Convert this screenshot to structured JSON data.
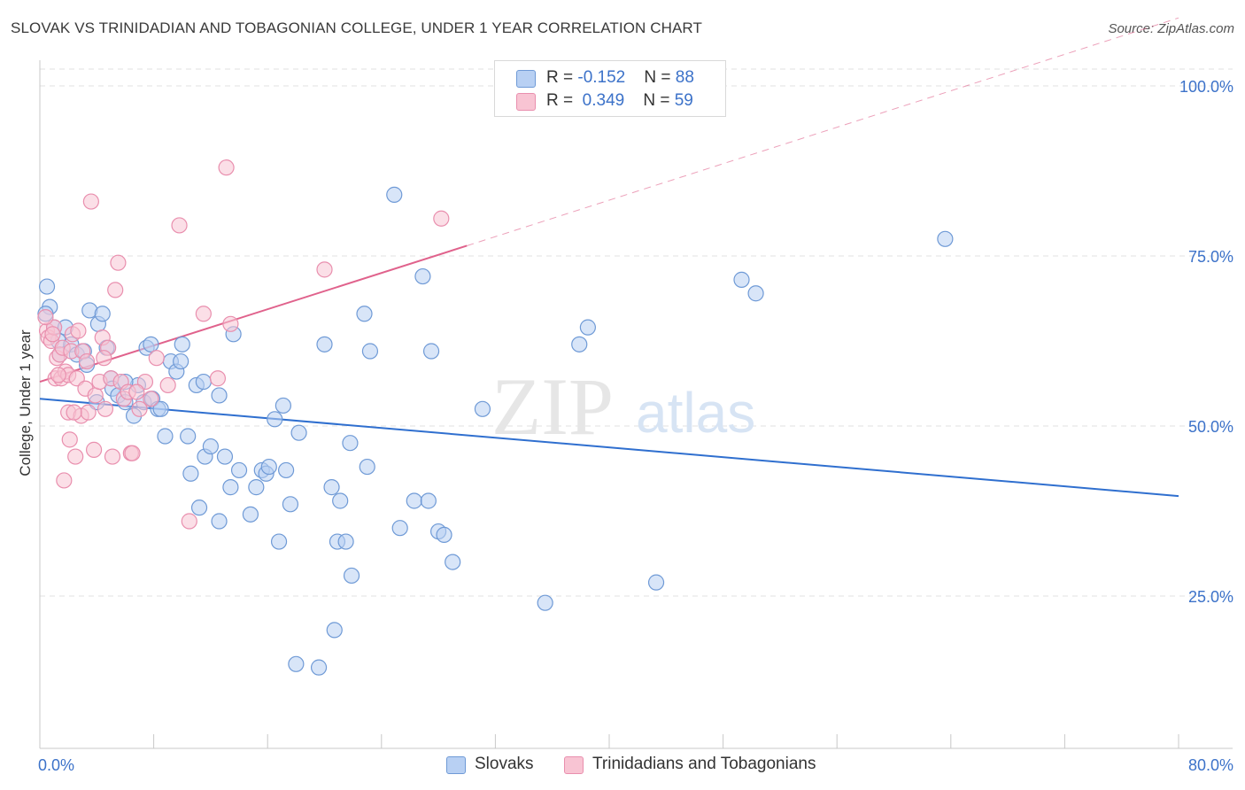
{
  "title": "SLOVAK VS TRINIDADIAN AND TOBAGONIAN COLLEGE, UNDER 1 YEAR CORRELATION CHART",
  "source": "Source: ZipAtlas.com",
  "watermark": {
    "zip": "ZIP",
    "atlas": "atlas"
  },
  "colors": {
    "blue_fill": "#b8d0f3",
    "blue_stroke": "#6f9ad6",
    "blue_line": "#2f6fcf",
    "pink_fill": "#f8c4d3",
    "pink_stroke": "#e98fae",
    "pink_line": "#e0628c",
    "axis_label": "#3c72c9",
    "grid": "#e2e2e2"
  },
  "legend_top": {
    "rows": [
      {
        "r_label": "R = ",
        "r_value": "-0.152",
        "n_label": "N = ",
        "n_value": "88"
      },
      {
        "r_label": "R = ",
        "r_value": " 0.349",
        "n_label": "N = ",
        "n_value": "59"
      }
    ]
  },
  "legend_bottom": {
    "items": [
      "Slovaks",
      "Trinidadians and Tobagonians"
    ]
  },
  "chart_data": {
    "type": "scatter",
    "title": "SLOVAK VS TRINIDADIAN AND TOBAGONIAN COLLEGE, UNDER 1 YEAR CORRELATION CHART",
    "xlabel": "",
    "ylabel": "College, Under 1 year",
    "xlim": [
      0,
      80
    ],
    "ylim": [
      0,
      103
    ],
    "x_tick_labels": [
      "0.0%",
      "80.0%"
    ],
    "y_ticks": [
      25,
      50,
      75,
      100
    ],
    "y_tick_labels": [
      "25.0%",
      "50.0%",
      "75.0%",
      "100.0%"
    ],
    "grid": true,
    "legend_position": "top-center",
    "series": [
      {
        "name": "Slovaks",
        "color": "#6f9ad6",
        "r": -0.152,
        "n": 88,
        "trend": {
          "x": [
            0,
            80
          ],
          "y": [
            54.0,
            39.7
          ]
        },
        "points": [
          [
            0.5,
            70.5
          ],
          [
            0.7,
            67.5
          ],
          [
            0.4,
            66.5
          ],
          [
            1.0,
            64.5
          ],
          [
            1.3,
            62.5
          ],
          [
            1.4,
            60.5
          ],
          [
            1.8,
            64.5
          ],
          [
            2.2,
            62.0
          ],
          [
            2.6,
            60.5
          ],
          [
            3.1,
            61.0
          ],
          [
            3.3,
            59.0
          ],
          [
            3.5,
            67.0
          ],
          [
            4.1,
            65.0
          ],
          [
            4.4,
            66.5
          ],
          [
            4.7,
            61.5
          ],
          [
            5.0,
            57.0
          ],
          [
            5.1,
            55.5
          ],
          [
            5.5,
            54.5
          ],
          [
            6.0,
            53.5
          ],
          [
            6.6,
            51.5
          ],
          [
            6.9,
            56.0
          ],
          [
            7.3,
            53.5
          ],
          [
            7.5,
            61.5
          ],
          [
            7.8,
            62.0
          ],
          [
            7.9,
            54.0
          ],
          [
            8.3,
            52.5
          ],
          [
            8.5,
            52.5
          ],
          [
            8.8,
            48.5
          ],
          [
            9.2,
            59.5
          ],
          [
            9.6,
            58.0
          ],
          [
            9.9,
            59.5
          ],
          [
            10.0,
            62.0
          ],
          [
            10.4,
            48.5
          ],
          [
            10.6,
            43.0
          ],
          [
            11.0,
            56.0
          ],
          [
            11.2,
            38.0
          ],
          [
            11.5,
            56.5
          ],
          [
            11.6,
            45.5
          ],
          [
            12.0,
            47.0
          ],
          [
            12.6,
            36.0
          ],
          [
            12.6,
            54.5
          ],
          [
            13.0,
            45.5
          ],
          [
            13.4,
            41.0
          ],
          [
            13.6,
            63.5
          ],
          [
            14.0,
            43.5
          ],
          [
            14.8,
            37.0
          ],
          [
            15.2,
            41.0
          ],
          [
            15.6,
            43.5
          ],
          [
            15.9,
            43.0
          ],
          [
            16.1,
            44.0
          ],
          [
            16.5,
            51.0
          ],
          [
            16.8,
            33.0
          ],
          [
            17.1,
            53.0
          ],
          [
            17.3,
            43.5
          ],
          [
            17.6,
            38.5
          ],
          [
            18.0,
            15.0
          ],
          [
            18.2,
            49.0
          ],
          [
            19.6,
            14.5
          ],
          [
            20.0,
            62.0
          ],
          [
            20.5,
            41.0
          ],
          [
            20.7,
            20.0
          ],
          [
            20.9,
            33.0
          ],
          [
            21.1,
            39.0
          ],
          [
            21.5,
            33.0
          ],
          [
            21.8,
            47.5
          ],
          [
            21.9,
            28.0
          ],
          [
            22.8,
            66.5
          ],
          [
            23.0,
            44.0
          ],
          [
            23.2,
            61.0
          ],
          [
            24.9,
            84.0
          ],
          [
            25.3,
            35.0
          ],
          [
            26.3,
            39.0
          ],
          [
            26.9,
            72.0
          ],
          [
            27.3,
            39.0
          ],
          [
            27.5,
            61.0
          ],
          [
            28.0,
            34.5
          ],
          [
            28.4,
            34.0
          ],
          [
            29.0,
            30.0
          ],
          [
            31.1,
            52.5
          ],
          [
            35.5,
            24.0
          ],
          [
            37.9,
            62.0
          ],
          [
            38.5,
            64.5
          ],
          [
            43.3,
            27.0
          ],
          [
            49.3,
            71.5
          ],
          [
            50.3,
            69.5
          ],
          [
            63.6,
            77.5
          ],
          [
            6.0,
            56.5
          ],
          [
            4.0,
            53.5
          ]
        ]
      },
      {
        "name": "Trinidadians and Tobagonians",
        "color": "#e98fae",
        "r": 0.349,
        "n": 59,
        "trend": {
          "x": [
            0,
            30
          ],
          "y": [
            56.5,
            76.5
          ],
          "dashed_to": {
            "x": 80,
            "y": 110
          }
        },
        "points": [
          [
            0.5,
            64.0
          ],
          [
            0.6,
            63.0
          ],
          [
            0.8,
            62.5
          ],
          [
            1.0,
            64.5
          ],
          [
            1.1,
            57.0
          ],
          [
            1.2,
            60.0
          ],
          [
            1.4,
            60.5
          ],
          [
            1.5,
            57.0
          ],
          [
            1.6,
            61.5
          ],
          [
            1.8,
            58.0
          ],
          [
            2.0,
            57.5
          ],
          [
            2.0,
            52.0
          ],
          [
            2.1,
            48.0
          ],
          [
            2.2,
            61.0
          ],
          [
            2.3,
            63.5
          ],
          [
            2.5,
            45.5
          ],
          [
            2.6,
            57.0
          ],
          [
            2.7,
            64.0
          ],
          [
            2.9,
            51.5
          ],
          [
            3.0,
            61.0
          ],
          [
            3.2,
            55.5
          ],
          [
            3.4,
            52.0
          ],
          [
            3.6,
            83.0
          ],
          [
            3.8,
            46.5
          ],
          [
            3.9,
            54.5
          ],
          [
            4.2,
            56.5
          ],
          [
            4.4,
            63.0
          ],
          [
            4.6,
            52.5
          ],
          [
            4.8,
            61.5
          ],
          [
            5.0,
            57.0
          ],
          [
            5.1,
            45.5
          ],
          [
            5.3,
            70.0
          ],
          [
            5.5,
            74.0
          ],
          [
            5.7,
            56.5
          ],
          [
            5.9,
            54.0
          ],
          [
            6.2,
            55.0
          ],
          [
            6.4,
            46.0
          ],
          [
            6.5,
            46.0
          ],
          [
            7.0,
            52.5
          ],
          [
            7.4,
            56.5
          ],
          [
            7.8,
            54.0
          ],
          [
            8.2,
            60.0
          ],
          [
            9.0,
            56.0
          ],
          [
            9.8,
            79.5
          ],
          [
            10.5,
            36.0
          ],
          [
            11.5,
            66.5
          ],
          [
            12.5,
            57.0
          ],
          [
            13.1,
            88.0
          ],
          [
            13.4,
            65.0
          ],
          [
            20.0,
            73.0
          ],
          [
            28.2,
            80.5
          ],
          [
            0.4,
            66.0
          ],
          [
            0.9,
            63.5
          ],
          [
            1.7,
            42.0
          ],
          [
            2.4,
            52.0
          ],
          [
            3.3,
            59.5
          ],
          [
            4.5,
            60.0
          ],
          [
            6.8,
            55.0
          ],
          [
            1.3,
            57.5
          ]
        ]
      }
    ]
  }
}
